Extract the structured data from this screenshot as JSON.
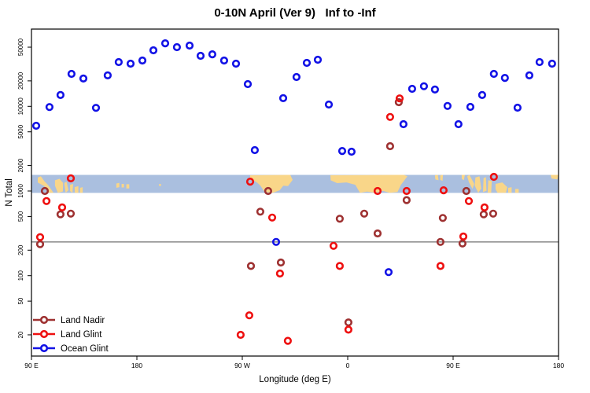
{
  "title": "0-10N April (Ver 9)   Inf to -Inf",
  "chart_data": {
    "type": "scatter",
    "title": "0-10N April (Ver 9)   Inf to -Inf",
    "xlabel": "Longitude (deg E)",
    "ylabel": "N Total",
    "grid": false,
    "x_axis": {
      "note": "longitude in extended deg E, 90 through 540 (wraps 90E-180-90W-0-90E-180)",
      "range": [
        90,
        540
      ],
      "ticks": [
        {
          "lon": 90,
          "label": "90 E"
        },
        {
          "lon": 180,
          "label": "180"
        },
        {
          "lon": 270,
          "label": "90 W"
        },
        {
          "lon": 360,
          "label": "0"
        },
        {
          "lon": 450,
          "label": "90 E"
        },
        {
          "lon": 540,
          "label": "180"
        }
      ]
    },
    "y_axis": {
      "scale": "log",
      "range": [
        11,
        85000
      ],
      "ticks": [
        20,
        50,
        100,
        200,
        500,
        1000,
        2000,
        5000,
        10000,
        20000,
        50000
      ]
    },
    "reference_line": {
      "value": 250,
      "color": "#4d4d4d"
    },
    "map_band": {
      "value_range": [
        950,
        1550
      ],
      "ocean_color": "#aabfdf",
      "land_color": "#f9d689",
      "land_shapes": [
        [
          [
            95.4,
            0.15
          ],
          [
            98,
            0.08
          ],
          [
            101,
            0.35
          ],
          [
            104,
            0.55
          ],
          [
            107,
            0.82
          ],
          [
            108.8,
            1
          ],
          [
            104.5,
            1
          ],
          [
            101,
            0.62
          ],
          [
            97.5,
            0.5
          ],
          [
            95.4,
            0.42
          ]
        ],
        [
          [
            110.1,
            0.3
          ],
          [
            114,
            0.22
          ],
          [
            117,
            0.45
          ],
          [
            116.8,
            0.92
          ],
          [
            112.5,
            1
          ],
          [
            110.1,
            0.6
          ]
        ],
        [
          [
            118,
            0.45
          ],
          [
            120,
            0.38
          ],
          [
            121.5,
            0.85
          ],
          [
            119.2,
            1
          ]
        ],
        [
          [
            123,
            0.55
          ],
          [
            125.6,
            0.5
          ],
          [
            125,
            1
          ],
          [
            123,
            0.9
          ]
        ],
        [
          [
            126.9,
            0.68
          ],
          [
            130,
            0.62
          ],
          [
            130,
            1
          ],
          [
            127,
            1
          ]
        ],
        [
          [
            131.5,
            0.72
          ],
          [
            133.7,
            0.68
          ],
          [
            133.7,
            1
          ],
          [
            131.5,
            1
          ]
        ],
        [
          [
            162.5,
            0.48
          ],
          [
            165,
            0.44
          ],
          [
            165,
            0.68
          ],
          [
            162.5,
            0.72
          ]
        ],
        [
          [
            167,
            0.5
          ],
          [
            169,
            0.5
          ],
          [
            169,
            0.7
          ],
          [
            167,
            0.7
          ]
        ],
        [
          [
            171,
            0.52
          ],
          [
            173.5,
            0.52
          ],
          [
            173.5,
            0.75
          ],
          [
            171,
            0.75
          ]
        ],
        [
          [
            199,
            0.5
          ],
          [
            200.5,
            0.5
          ],
          [
            200.5,
            0.62
          ],
          [
            199,
            0.62
          ]
        ],
        [
          [
            276.7,
            0.02
          ],
          [
            311,
            0
          ],
          [
            313,
            0.28
          ],
          [
            309,
            0.62
          ],
          [
            305,
            0.6
          ],
          [
            302,
            0.85
          ],
          [
            296,
            1
          ],
          [
            289,
            0.95
          ],
          [
            285.5,
            0.6
          ],
          [
            282.5,
            0.42
          ],
          [
            279,
            0.28
          ],
          [
            276.7,
            0.2
          ]
        ],
        [
          [
            345.2,
            0.02
          ],
          [
            408,
            0
          ],
          [
            411,
            0.08
          ],
          [
            405.5,
            0.55
          ],
          [
            402.5,
            0.95
          ],
          [
            396,
            1
          ],
          [
            390,
            0.88
          ],
          [
            383.5,
            1
          ],
          [
            376.5,
            0.93
          ],
          [
            370.5,
            1
          ],
          [
            366.5,
            0.55
          ],
          [
            359,
            0.42
          ],
          [
            351,
            0.46
          ],
          [
            345.5,
            0.3
          ]
        ],
        [
          [
            434.5,
            0.02
          ],
          [
            437,
            0
          ],
          [
            437.6,
            0.3
          ],
          [
            434.8,
            0.25
          ]
        ],
        [
          [
            439,
            0.02
          ],
          [
            441.3,
            0
          ],
          [
            441,
            0.33
          ],
          [
            439,
            0.28
          ]
        ],
        [
          [
            457.3,
            0
          ],
          [
            460,
            0
          ],
          [
            459.2,
            0.3
          ],
          [
            457.3,
            0.22
          ]
        ],
        [
          [
            462,
            0.08
          ],
          [
            464,
            0
          ],
          [
            468,
            0.5
          ],
          [
            466.5,
            0.78
          ],
          [
            463.5,
            0.4
          ]
        ],
        [
          [
            469,
            0.15
          ],
          [
            472.5,
            0.08
          ],
          [
            474,
            0.75
          ],
          [
            471.5,
            1
          ],
          [
            468.5,
            0.6
          ]
        ],
        [
          [
            476,
            0.18
          ],
          [
            478,
            0.12
          ],
          [
            478.5,
            0.88
          ],
          [
            475.5,
            0.95
          ]
        ],
        [
          [
            480,
            0.3
          ],
          [
            483,
            0.33
          ],
          [
            482.5,
            1
          ],
          [
            479.5,
            1
          ]
        ],
        [
          [
            486.2,
            0.5
          ],
          [
            492,
            0.42
          ],
          [
            496.3,
            0.68
          ],
          [
            495,
            1
          ],
          [
            488,
            1
          ],
          [
            486.2,
            0.8
          ]
        ],
        [
          [
            497,
            0.72
          ],
          [
            500,
            0.68
          ],
          [
            500,
            1
          ],
          [
            497,
            1
          ]
        ],
        [
          [
            503,
            0.78
          ],
          [
            506,
            0.78
          ],
          [
            506,
            1
          ],
          [
            503,
            1
          ]
        ],
        [
          [
            533.2,
            0
          ],
          [
            540,
            0
          ],
          [
            539,
            0.25
          ],
          [
            534,
            0.2
          ]
        ]
      ]
    },
    "series": [
      {
        "name": "Land Nadir",
        "color": "#9e3131",
        "points": [
          [
            97.4,
            235
          ],
          [
            101.4,
            1000
          ],
          [
            114.8,
            530
          ],
          [
            123.6,
            540
          ],
          [
            277.4,
            130
          ],
          [
            285.4,
            570
          ],
          [
            292.1,
            1000
          ],
          [
            302.9,
            143
          ],
          [
            353.2,
            470
          ],
          [
            360.6,
            28
          ],
          [
            374.1,
            540
          ],
          [
            385.5,
            315
          ],
          [
            396.2,
            3380
          ],
          [
            403.6,
            11200
          ],
          [
            410.3,
            780
          ],
          [
            439.2,
            250
          ],
          [
            441.2,
            480
          ],
          [
            458,
            240
          ],
          [
            461.3,
            1000
          ],
          [
            476.1,
            530
          ],
          [
            484.2,
            540
          ]
        ]
      },
      {
        "name": "Land Glint",
        "color": "#ee1010",
        "points": [
          [
            97.4,
            285
          ],
          [
            102.8,
            760
          ],
          [
            116.2,
            640
          ],
          [
            123.6,
            1410
          ],
          [
            268.6,
            20
          ],
          [
            276,
            34
          ],
          [
            276.7,
            1290
          ],
          [
            295.5,
            485
          ],
          [
            302.2,
            106
          ],
          [
            308.9,
            17
          ],
          [
            347.9,
            225
          ],
          [
            353.2,
            130
          ],
          [
            360.6,
            23
          ],
          [
            385.5,
            1000
          ],
          [
            396.2,
            7500
          ],
          [
            404.3,
            12400
          ],
          [
            410.3,
            1000
          ],
          [
            439.2,
            130
          ],
          [
            441.9,
            1020
          ],
          [
            458.7,
            290
          ],
          [
            463.4,
            760
          ],
          [
            476.8,
            640
          ],
          [
            484.8,
            1470
          ]
        ]
      },
      {
        "name": "Ocean Glint",
        "color": "#1212e6",
        "points": [
          [
            94,
            5900
          ],
          [
            105.4,
            9800
          ],
          [
            114.8,
            13600
          ],
          [
            124.2,
            24200
          ],
          [
            134.3,
            21300
          ],
          [
            145.1,
            9600
          ],
          [
            155.1,
            23200
          ],
          [
            164.5,
            33300
          ],
          [
            174.6,
            31900
          ],
          [
            184.7,
            34800
          ],
          [
            194.1,
            45900
          ],
          [
            204.2,
            55600
          ],
          [
            214.2,
            50000
          ],
          [
            225,
            52200
          ],
          [
            234.4,
            39500
          ],
          [
            244.4,
            41200
          ],
          [
            254.5,
            34800
          ],
          [
            264.6,
            31900
          ],
          [
            274.7,
            18300
          ],
          [
            280.7,
            3040
          ],
          [
            298.9,
            250
          ],
          [
            304.9,
            12500
          ],
          [
            316.3,
            22200
          ],
          [
            325.1,
            32600
          ],
          [
            334.5,
            35500
          ],
          [
            343.9,
            10500
          ],
          [
            355.3,
            2970
          ],
          [
            363.3,
            2910
          ],
          [
            394.9,
            110
          ],
          [
            407.6,
            6150
          ],
          [
            415,
            16100
          ],
          [
            425.1,
            17300
          ],
          [
            434.5,
            15800
          ],
          [
            445.2,
            10100
          ],
          [
            454.6,
            6150
          ],
          [
            464.7,
            9860
          ],
          [
            474.8,
            13600
          ],
          [
            484.8,
            24200
          ],
          [
            494.2,
            21700
          ],
          [
            505,
            9640
          ],
          [
            515.1,
            23200
          ],
          [
            523.8,
            33300
          ],
          [
            534.5,
            31900
          ]
        ]
      }
    ],
    "legend": {
      "position": "bottom-left",
      "entries": [
        "Land Nadir",
        "Land Glint",
        "Ocean Glint"
      ]
    }
  }
}
